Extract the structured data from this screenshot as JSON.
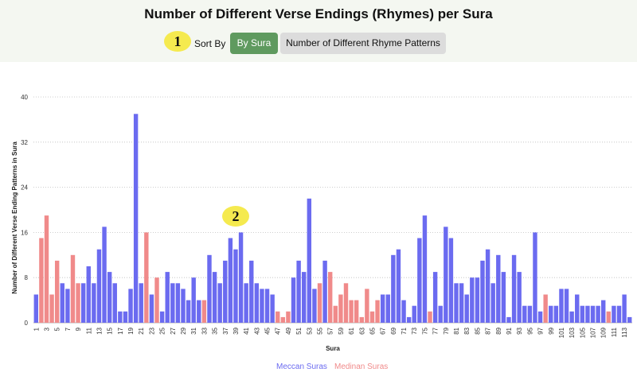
{
  "header": {
    "title": "Number of Different Verse Endings (Rhymes) per Sura",
    "sort_label": "Sort By",
    "sort_by_sura_label": "By Sura",
    "sort_by_patterns_label": "Number of Different Rhyme Patterns"
  },
  "markers": {
    "marker_1": "1",
    "marker_2": "2"
  },
  "colors": {
    "meccan": "#6b6bf0",
    "medinan": "#f08a8a",
    "active_button": "#5f9a5f",
    "marker": "#f5ea4f"
  },
  "chart_data": {
    "type": "bar",
    "title": "Number of Different Verse Endings (Rhymes) per Sura",
    "xlabel": "Sura",
    "ylabel": "Number of Different Verse Ending Patterns in Sura",
    "ylim": [
      0,
      40
    ],
    "yticks": [
      0,
      8,
      16,
      24,
      32,
      40
    ],
    "grid": "horizontal dotted",
    "legend_placement": "bottom-center",
    "x_tick_labels": [
      "1",
      "3",
      "5",
      "7",
      "9",
      "11",
      "13",
      "15",
      "17",
      "19",
      "21",
      "23",
      "25",
      "27",
      "29",
      "31",
      "33",
      "35",
      "37",
      "39",
      "41",
      "43",
      "45",
      "47",
      "49",
      "51",
      "53",
      "55",
      "57",
      "59",
      "61",
      "63",
      "65",
      "67",
      "69",
      "71",
      "73",
      "75",
      "77",
      "79",
      "81",
      "83",
      "85",
      "87",
      "89",
      "91",
      "93",
      "95",
      "97",
      "99",
      "101",
      "103",
      "105",
      "107",
      "109",
      "111",
      "113"
    ],
    "series": [
      {
        "name": "Meccan Suras",
        "color": "#6b6bf0"
      },
      {
        "name": "Medinan Suras",
        "color": "#f08a8a"
      }
    ],
    "categories": [
      1,
      2,
      3,
      4,
      5,
      6,
      7,
      8,
      9,
      10,
      11,
      12,
      13,
      14,
      15,
      16,
      17,
      18,
      19,
      20,
      21,
      22,
      23,
      24,
      25,
      26,
      27,
      28,
      29,
      30,
      31,
      32,
      33,
      34,
      35,
      36,
      37,
      38,
      39,
      40,
      41,
      42,
      43,
      44,
      45,
      46,
      47,
      48,
      49,
      50,
      51,
      52,
      53,
      54,
      55,
      56,
      57,
      58,
      59,
      60,
      61,
      62,
      63,
      64,
      65,
      66,
      67,
      68,
      69,
      70,
      71,
      72,
      73,
      74,
      75,
      76,
      77,
      78,
      79,
      80,
      81,
      82,
      83,
      84,
      85,
      86,
      87,
      88,
      89,
      90,
      91,
      92,
      93,
      94,
      95,
      96,
      97,
      98,
      99,
      100,
      101,
      102,
      103,
      104,
      105,
      106,
      107,
      108,
      109,
      110,
      111,
      112,
      113,
      114
    ],
    "values": [
      5,
      15,
      19,
      5,
      11,
      7,
      6,
      12,
      7,
      7,
      10,
      7,
      13,
      17,
      9,
      7,
      2,
      2,
      6,
      37,
      7,
      16,
      5,
      8,
      2,
      9,
      7,
      7,
      6,
      4,
      8,
      4,
      4,
      12,
      9,
      7,
      11,
      15,
      13,
      16,
      7,
      11,
      7,
      6,
      6,
      5,
      2,
      1,
      2,
      8,
      11,
      9,
      22,
      6,
      7,
      11,
      9,
      3,
      5,
      7,
      4,
      4,
      1,
      6,
      2,
      4,
      5,
      5,
      12,
      13,
      4,
      1,
      3,
      15,
      19,
      2,
      9,
      3,
      17,
      15,
      7,
      7,
      5,
      8,
      8,
      11,
      13,
      7,
      12,
      9,
      1,
      12,
      9,
      3,
      3,
      16,
      2,
      5,
      3,
      3,
      6,
      6,
      2,
      5,
      3,
      3,
      3,
      3,
      4,
      2,
      3,
      3,
      5,
      1
    ],
    "medinan_suras": [
      2,
      3,
      4,
      5,
      8,
      9,
      22,
      24,
      33,
      47,
      48,
      49,
      55,
      57,
      58,
      59,
      60,
      61,
      62,
      63,
      64,
      65,
      66,
      76,
      98,
      110
    ]
  }
}
